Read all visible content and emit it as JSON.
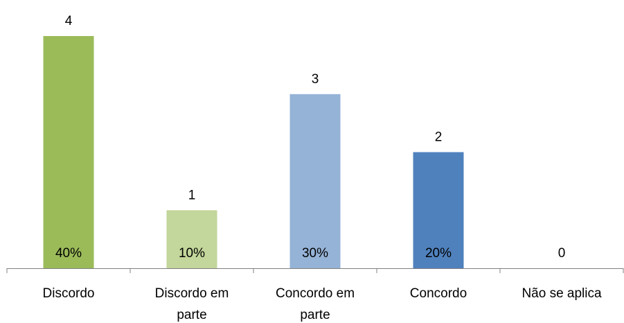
{
  "chart_data": {
    "type": "bar",
    "categories": [
      [
        "Discordo"
      ],
      [
        "Discordo em",
        "parte"
      ],
      [
        "Concordo em",
        "parte"
      ],
      [
        "Concordo"
      ],
      [
        "Não se aplica"
      ]
    ],
    "values": [
      4,
      1,
      3,
      2,
      0
    ],
    "percent_labels": [
      "40%",
      "10%",
      "30%",
      "20%",
      ""
    ],
    "bar_colors": [
      "#9bbb59",
      "#c3d69b",
      "#95b3d7",
      "#4f81bd",
      "#ffffff"
    ],
    "title": "",
    "xlabel": "",
    "ylabel": "",
    "ylim": [
      0,
      4
    ],
    "grid": false,
    "legend": "none"
  }
}
